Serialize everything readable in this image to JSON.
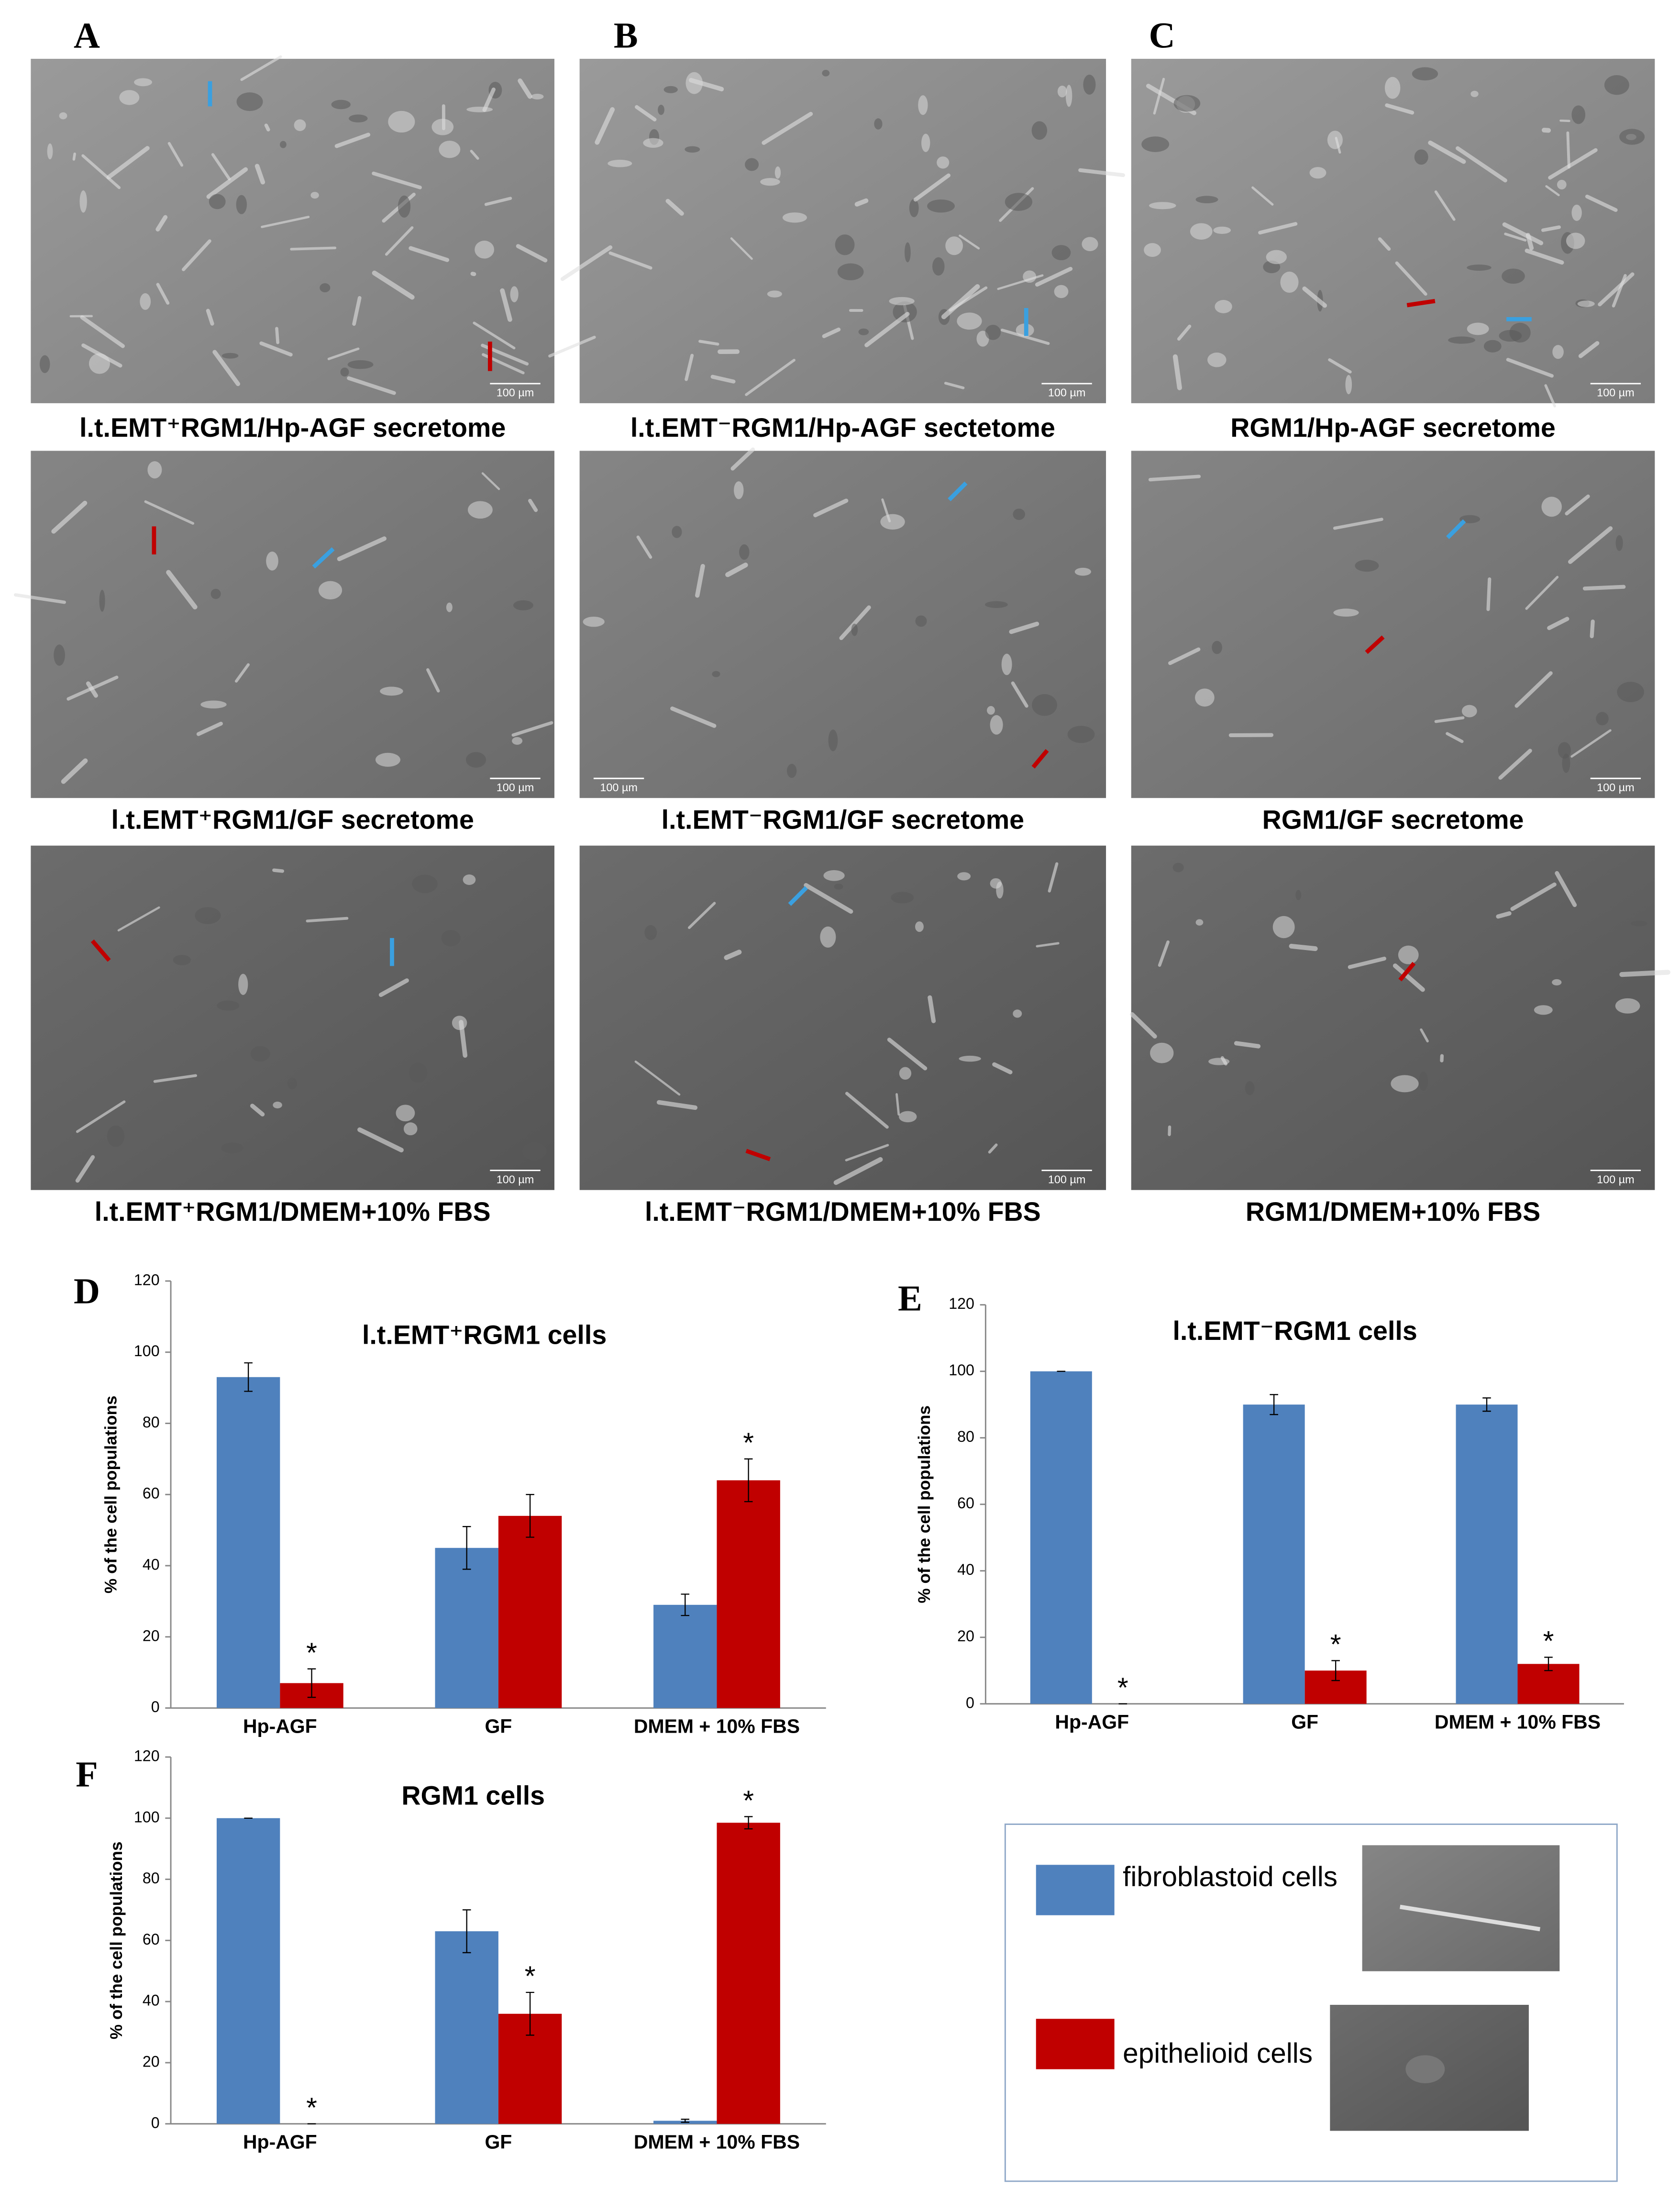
{
  "panel_letters": [
    "A",
    "B",
    "C",
    "D",
    "E",
    "F"
  ],
  "scale_bar": "100 µm",
  "micrographs": [
    {
      "caption": "l.t.EMT⁺RGM1/Hp-AGF secretome"
    },
    {
      "caption": "l.t.EMT⁻RGM1/Hp-AGF sectetome"
    },
    {
      "caption": "RGM1/Hp-AGF secretome"
    },
    {
      "caption": "l.t.EMT⁺RGM1/GF secretome"
    },
    {
      "caption": "l.t.EMT⁻RGM1/GF secretome"
    },
    {
      "caption": "RGM1/GF secretome"
    },
    {
      "caption": "l.t.EMT⁺RGM1/DMEM+10% FBS"
    },
    {
      "caption": "l.t.EMT⁻RGM1/DMEM+10% FBS"
    },
    {
      "caption": "RGM1/DMEM+10% FBS"
    }
  ],
  "chart_data": [
    {
      "type": "bar",
      "title": "l.t.EMT⁺RGM1 cells",
      "y_label": "% of the cell populations",
      "categories": [
        "Hp-AGF",
        "GF",
        "DMEM + 10% FBS"
      ],
      "series": [
        {
          "name": "fibroblastoid cells",
          "color": "#4f81bd",
          "values": [
            93,
            45,
            29
          ],
          "errors": [
            4,
            6,
            3
          ],
          "markers": [
            null,
            null,
            null
          ]
        },
        {
          "name": "epithelioid cells",
          "color": "#c00000",
          "values": [
            7,
            54,
            64
          ],
          "errors": [
            4,
            6,
            6
          ],
          "markers": [
            "*",
            null,
            "*"
          ]
        }
      ],
      "ylim": [
        0,
        120
      ],
      "yticks": [
        0,
        20,
        40,
        60,
        80,
        100,
        120
      ],
      "grid": false
    },
    {
      "type": "bar",
      "title": "l.t.EMT⁻RGM1 cells",
      "y_label": "% of the cell populations",
      "categories": [
        "Hp-AGF",
        "GF",
        "DMEM + 10% FBS"
      ],
      "series": [
        {
          "name": "fibroblastoid cells",
          "color": "#4f81bd",
          "values": [
            100,
            90,
            90
          ],
          "errors": [
            0,
            3,
            2
          ],
          "markers": [
            null,
            null,
            null
          ]
        },
        {
          "name": "epithelioid cells",
          "color": "#c00000",
          "values": [
            0,
            10,
            12
          ],
          "errors": [
            0,
            3,
            2
          ],
          "markers": [
            "*",
            "*",
            "*"
          ]
        }
      ],
      "ylim": [
        0,
        120
      ],
      "yticks": [
        0,
        20,
        40,
        60,
        80,
        100,
        120
      ],
      "grid": false
    },
    {
      "type": "bar",
      "title": "RGM1 cells",
      "y_label": "% of the cell populations",
      "categories": [
        "Hp-AGF",
        "GF",
        "DMEM + 10% FBS"
      ],
      "series": [
        {
          "name": "fibroblastoid cells",
          "color": "#4f81bd",
          "values": [
            100,
            63,
            1
          ],
          "errors": [
            0,
            7,
            0.5
          ],
          "markers": [
            null,
            null,
            null
          ]
        },
        {
          "name": "epithelioid cells",
          "color": "#c00000",
          "values": [
            0,
            36,
            98.5
          ],
          "errors": [
            0,
            7,
            2
          ],
          "markers": [
            "*",
            "*",
            "*"
          ]
        }
      ],
      "ylim": [
        0,
        120
      ],
      "yticks": [
        0,
        20,
        40,
        60,
        80,
        100,
        120
      ],
      "grid": false
    }
  ]
}
